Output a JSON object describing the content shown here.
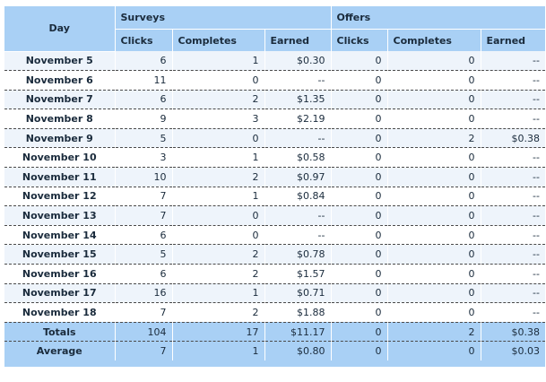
{
  "table": {
    "day_header": "Day",
    "groups": {
      "surveys": "Surveys",
      "offers": "Offers"
    },
    "columns": [
      "Clicks",
      "Completes",
      "Earned",
      "Clicks",
      "Completes",
      "Earned"
    ],
    "rows": [
      {
        "day": "November 5",
        "s_clicks": "6",
        "s_completes": "1",
        "s_earned": "$0.30",
        "o_clicks": "0",
        "o_completes": "0",
        "o_earned": "--"
      },
      {
        "day": "November 6",
        "s_clicks": "11",
        "s_completes": "0",
        "s_earned": "--",
        "o_clicks": "0",
        "o_completes": "0",
        "o_earned": "--"
      },
      {
        "day": "November 7",
        "s_clicks": "6",
        "s_completes": "2",
        "s_earned": "$1.35",
        "o_clicks": "0",
        "o_completes": "0",
        "o_earned": "--"
      },
      {
        "day": "November 8",
        "s_clicks": "9",
        "s_completes": "3",
        "s_earned": "$2.19",
        "o_clicks": "0",
        "o_completes": "0",
        "o_earned": "--"
      },
      {
        "day": "November 9",
        "s_clicks": "5",
        "s_completes": "0",
        "s_earned": "--",
        "o_clicks": "0",
        "o_completes": "2",
        "o_earned": "$0.38"
      },
      {
        "day": "November 10",
        "s_clicks": "3",
        "s_completes": "1",
        "s_earned": "$0.58",
        "o_clicks": "0",
        "o_completes": "0",
        "o_earned": "--"
      },
      {
        "day": "November 11",
        "s_clicks": "10",
        "s_completes": "2",
        "s_earned": "$0.97",
        "o_clicks": "0",
        "o_completes": "0",
        "o_earned": "--"
      },
      {
        "day": "November 12",
        "s_clicks": "7",
        "s_completes": "1",
        "s_earned": "$0.84",
        "o_clicks": "0",
        "o_completes": "0",
        "o_earned": "--"
      },
      {
        "day": "November 13",
        "s_clicks": "7",
        "s_completes": "0",
        "s_earned": "--",
        "o_clicks": "0",
        "o_completes": "0",
        "o_earned": "--"
      },
      {
        "day": "November 14",
        "s_clicks": "6",
        "s_completes": "0",
        "s_earned": "--",
        "o_clicks": "0",
        "o_completes": "0",
        "o_earned": "--"
      },
      {
        "day": "November 15",
        "s_clicks": "5",
        "s_completes": "2",
        "s_earned": "$0.78",
        "o_clicks": "0",
        "o_completes": "0",
        "o_earned": "--"
      },
      {
        "day": "November 16",
        "s_clicks": "6",
        "s_completes": "2",
        "s_earned": "$1.57",
        "o_clicks": "0",
        "o_completes": "0",
        "o_earned": "--"
      },
      {
        "day": "November 17",
        "s_clicks": "16",
        "s_completes": "1",
        "s_earned": "$0.71",
        "o_clicks": "0",
        "o_completes": "0",
        "o_earned": "--"
      },
      {
        "day": "November 18",
        "s_clicks": "7",
        "s_completes": "2",
        "s_earned": "$1.88",
        "o_clicks": "0",
        "o_completes": "0",
        "o_earned": "--"
      }
    ],
    "totals": {
      "day": "Totals",
      "s_clicks": "104",
      "s_completes": "17",
      "s_earned": "$11.17",
      "o_clicks": "0",
      "o_completes": "2",
      "o_earned": "$0.38"
    },
    "average": {
      "day": "Average",
      "s_clicks": "7",
      "s_completes": "1",
      "s_earned": "$0.80",
      "o_clicks": "0",
      "o_completes": "0",
      "o_earned": "$0.03"
    }
  },
  "colors": {
    "header_bg": "#a9d0f5",
    "row_alt_bg": "#eef4fb",
    "text": "#1a2b3c",
    "row_divider": "#4a4a4a"
  }
}
